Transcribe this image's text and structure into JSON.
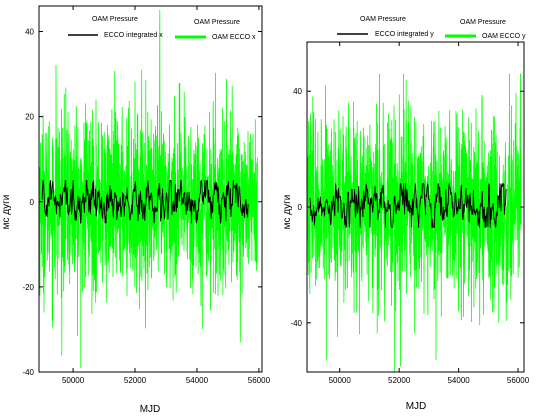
{
  "colors": {
    "ecco": "#00ff00",
    "integrated": "#000000",
    "axis": "#000000",
    "text": "#000000"
  },
  "chart_data": [
    {
      "type": "line",
      "xlabel": "MJD",
      "ylabel": "мс дуги",
      "xlim": [
        48900,
        56100
      ],
      "ylim": [
        -40,
        46
      ],
      "xticks": [
        50000,
        52000,
        54000,
        56000
      ],
      "yticks": [
        -40,
        -20,
        0,
        20,
        40
      ],
      "grid": false,
      "legend": [
        {
          "label_top": "OAM Pressure",
          "label_bottom": "ECCO integrated x",
          "color": "#000000"
        },
        {
          "label_top": "OAM Pressure",
          "label_bottom": "OAM ECCO x",
          "color": "#00ff00"
        }
      ],
      "series": [
        {
          "name": "OAM ECCO x",
          "color": "#00ff00",
          "x_range": [
            48900,
            55950
          ],
          "mean": 0,
          "typical_range": [
            -15,
            18
          ],
          "min": -40,
          "max": 45,
          "peaks": [
            [
              49450,
              32
            ],
            [
              50250,
              -39
            ],
            [
              52800,
              45
            ],
            [
              55400,
              -33
            ]
          ]
        },
        {
          "name": "ECCO integrated x",
          "color": "#000000",
          "x_range": [
            49000,
            55650
          ],
          "mean": 0.5,
          "typical_range": [
            -5,
            5
          ]
        }
      ]
    },
    {
      "type": "line",
      "xlabel": "MJD",
      "ylabel": "мс дуги",
      "xlim": [
        48900,
        56200
      ],
      "ylim": [
        -57,
        57
      ],
      "xticks": [
        50000,
        52000,
        54000,
        56000
      ],
      "yticks": [
        -40,
        0,
        40
      ],
      "grid": false,
      "legend": [
        {
          "label_top": "OAM Pressure",
          "label_bottom": "ECCO integrated y",
          "color": "#000000"
        },
        {
          "label_top": "OAM Pressure",
          "label_bottom": "OAM ECCO y",
          "color": "#00ff00"
        }
      ],
      "series": [
        {
          "name": "OAM ECCO y",
          "color": "#00ff00",
          "x_range": [
            48900,
            56100
          ],
          "mean": 0,
          "typical_range": [
            -25,
            25
          ],
          "min": -57,
          "max": 46,
          "peaks": [
            [
              52150,
              46
            ],
            [
              51850,
              -57
            ],
            [
              49550,
              -53
            ],
            [
              52250,
              -30
            ]
          ]
        },
        {
          "name": "ECCO integrated y",
          "color": "#000000",
          "x_range": [
            49000,
            55600
          ],
          "mean": 1,
          "typical_range": [
            -7,
            8
          ]
        }
      ]
    }
  ]
}
